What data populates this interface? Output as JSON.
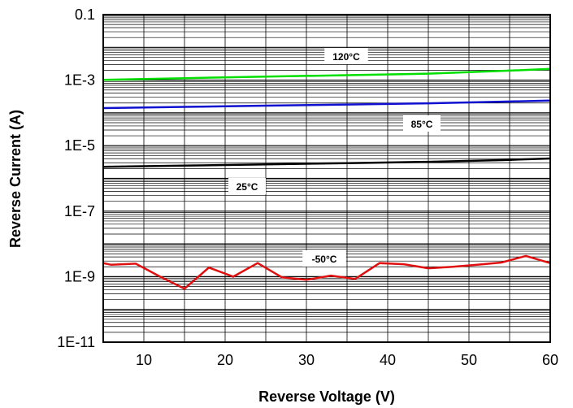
{
  "chart_data": {
    "type": "line",
    "title": "",
    "xlabel": "Reverse Voltage (V)",
    "ylabel": "Reverse Current (A)",
    "xlim": [
      5,
      60
    ],
    "ylim": [
      1e-11,
      0.1
    ],
    "yscale": "log",
    "grid": true,
    "x_ticks": [
      10,
      20,
      30,
      40,
      50,
      60
    ],
    "x_tick_labels": [
      "10",
      "20",
      "30",
      "40",
      "50",
      "60"
    ],
    "y_ticks": [
      1e-11,
      1e-09,
      1e-07,
      1e-05,
      0.001,
      0.1
    ],
    "y_tick_labels": [
      "1E-11",
      "1E-9",
      "1E-7",
      "1E-5",
      "1E-3",
      "0.1"
    ],
    "series": [
      {
        "name": "120°C",
        "color": "#00e000",
        "x": [
          5,
          15,
          25,
          35,
          45,
          55,
          60
        ],
        "y": [
          0.00102,
          0.00115,
          0.00128,
          0.00142,
          0.00158,
          0.00195,
          0.0022
        ]
      },
      {
        "name": "85°C",
        "color": "#1010d0",
        "x": [
          5,
          15,
          25,
          35,
          45,
          55,
          60
        ],
        "y": [
          0.00014,
          0.000153,
          0.000166,
          0.00018,
          0.000196,
          0.000222,
          0.000238
        ]
      },
      {
        "name": "25°C",
        "color": "#000000",
        "x": [
          5,
          15,
          25,
          35,
          45,
          55,
          60
        ],
        "y": [
          2.25e-06,
          2.45e-06,
          2.68e-06,
          2.92e-06,
          3.2e-06,
          3.68e-06,
          4.05e-06
        ]
      },
      {
        "name": "-50°C",
        "color": "#e01010",
        "x": [
          5,
          6,
          9,
          12,
          15,
          18,
          21,
          24,
          27,
          30,
          33,
          36,
          39,
          42,
          45,
          48,
          51,
          54,
          57,
          60
        ],
        "y": [
          2.6e-09,
          2.3e-09,
          2.5e-09,
          1e-09,
          4.3e-10,
          1.9e-09,
          1e-09,
          2.6e-09,
          9.5e-10,
          8e-10,
          1.08e-09,
          8.5e-10,
          2.6e-09,
          2.4e-09,
          1.8e-09,
          2e-09,
          2.3e-09,
          2.7e-09,
          4.3e-09,
          2.6e-09
        ]
      }
    ],
    "annotations": [
      {
        "text": "120°C",
        "series": "120°C"
      },
      {
        "text": "85°C",
        "series": "85°C"
      },
      {
        "text": "25°C",
        "series": "25°C"
      },
      {
        "text": "-50°C",
        "series": "-50°C"
      }
    ]
  }
}
